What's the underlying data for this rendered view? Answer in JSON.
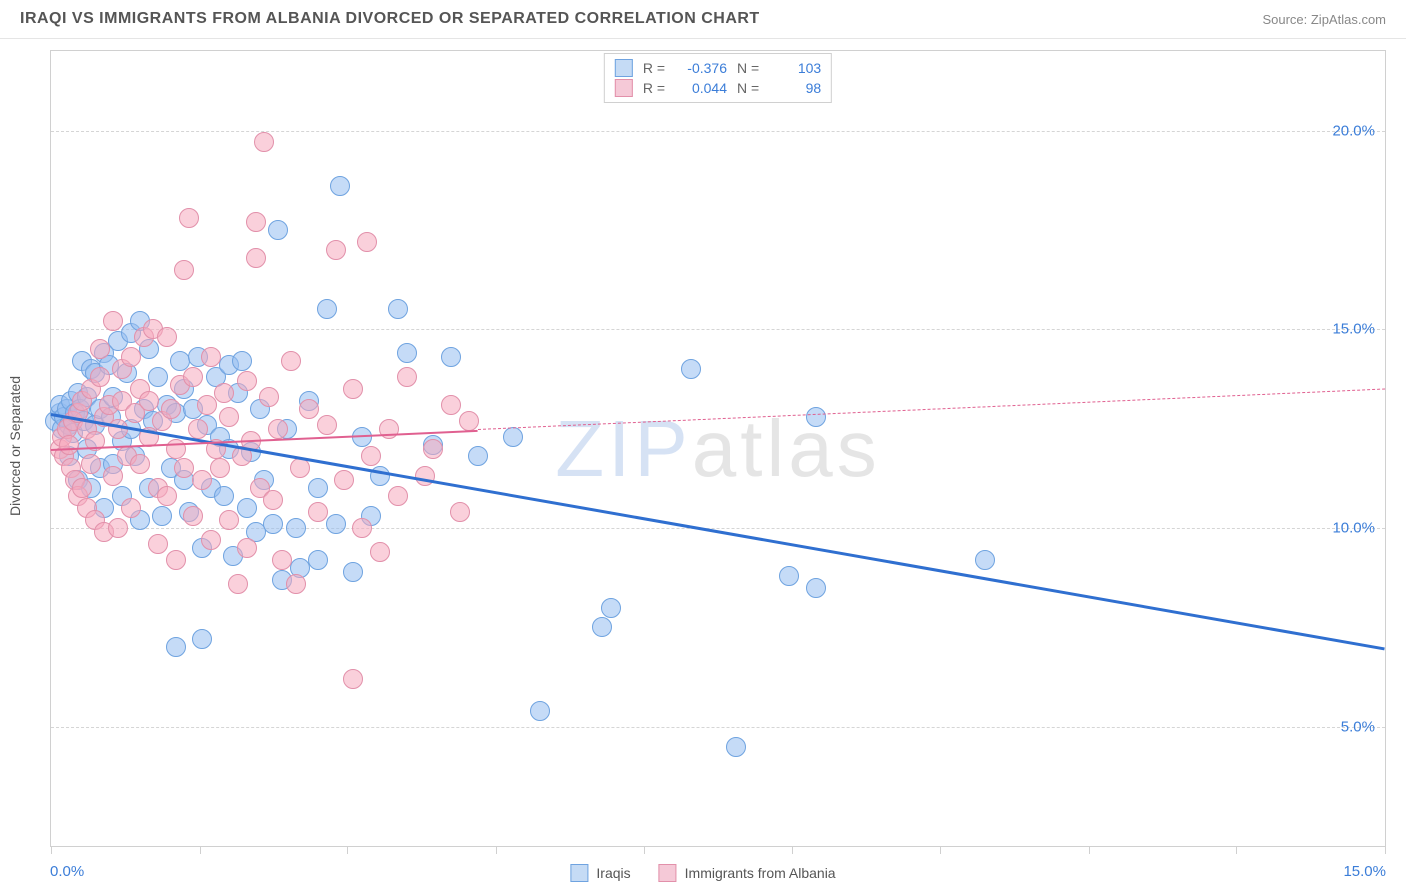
{
  "title": "IRAQI VS IMMIGRANTS FROM ALBANIA DIVORCED OR SEPARATED CORRELATION CHART",
  "source": "Source: ZipAtlas.com",
  "y_axis_title": "Divorced or Separated",
  "watermark_a": "ZIP",
  "watermark_b": "atlas",
  "chart": {
    "type": "scatter",
    "xlim": [
      0,
      15
    ],
    "ylim": [
      2,
      22
    ],
    "y_ticks": [
      5,
      10,
      15,
      20
    ],
    "y_tick_labels": [
      "5.0%",
      "10.0%",
      "15.0%",
      "20.0%"
    ],
    "x_minor_ticks": [
      0,
      1.67,
      3.33,
      5,
      6.67,
      8.33,
      10,
      11.67,
      13.33,
      15
    ],
    "x_label_min": "0.0%",
    "x_label_max": "15.0%",
    "background_color": "#ffffff",
    "grid_color": "#d5d5d5",
    "border_color": "#d0d0d0",
    "marker_radius": 10,
    "marker_border_width": 1,
    "series": [
      {
        "name": "Iraqis",
        "fill_color": "rgba(150,190,240,0.55)",
        "stroke_color": "#6fa3e0",
        "R": "-0.376",
        "N": "103",
        "trend": {
          "x1": 0,
          "y1": 12.9,
          "x2": 15,
          "y2": 7.0,
          "color": "#2f6fd0",
          "width": 2.5,
          "solid_until_x": 15
        },
        "points": [
          [
            0.05,
            12.7
          ],
          [
            0.1,
            12.9
          ],
          [
            0.1,
            13.1
          ],
          [
            0.12,
            12.5
          ],
          [
            0.15,
            12.8
          ],
          [
            0.18,
            13.0
          ],
          [
            0.2,
            12.6
          ],
          [
            0.2,
            11.8
          ],
          [
            0.22,
            13.2
          ],
          [
            0.25,
            12.4
          ],
          [
            0.27,
            12.9
          ],
          [
            0.3,
            13.4
          ],
          [
            0.3,
            11.2
          ],
          [
            0.33,
            13.0
          ],
          [
            0.35,
            14.2
          ],
          [
            0.37,
            12.7
          ],
          [
            0.4,
            13.3
          ],
          [
            0.4,
            12.0
          ],
          [
            0.45,
            14.0
          ],
          [
            0.45,
            11.0
          ],
          [
            0.5,
            13.9
          ],
          [
            0.5,
            12.6
          ],
          [
            0.55,
            13.0
          ],
          [
            0.55,
            11.5
          ],
          [
            0.6,
            14.4
          ],
          [
            0.6,
            10.5
          ],
          [
            0.65,
            14.1
          ],
          [
            0.68,
            12.8
          ],
          [
            0.7,
            13.3
          ],
          [
            0.7,
            11.6
          ],
          [
            0.75,
            14.7
          ],
          [
            0.8,
            12.2
          ],
          [
            0.8,
            10.8
          ],
          [
            0.85,
            13.9
          ],
          [
            0.9,
            14.9
          ],
          [
            0.9,
            12.5
          ],
          [
            0.95,
            11.8
          ],
          [
            1.0,
            15.2
          ],
          [
            1.0,
            10.2
          ],
          [
            1.05,
            13.0
          ],
          [
            1.1,
            14.5
          ],
          [
            1.1,
            11.0
          ],
          [
            1.15,
            12.7
          ],
          [
            1.2,
            13.8
          ],
          [
            1.25,
            10.3
          ],
          [
            1.3,
            13.1
          ],
          [
            1.35,
            11.5
          ],
          [
            1.4,
            12.9
          ],
          [
            1.45,
            14.2
          ],
          [
            1.5,
            13.5
          ],
          [
            1.5,
            11.2
          ],
          [
            1.55,
            10.4
          ],
          [
            1.6,
            13.0
          ],
          [
            1.65,
            14.3
          ],
          [
            1.7,
            9.5
          ],
          [
            1.75,
            12.6
          ],
          [
            1.8,
            11.0
          ],
          [
            1.85,
            13.8
          ],
          [
            1.9,
            12.3
          ],
          [
            1.95,
            10.8
          ],
          [
            2.0,
            14.1
          ],
          [
            2.0,
            12.0
          ],
          [
            2.05,
            9.3
          ],
          [
            2.1,
            13.4
          ],
          [
            2.15,
            14.2
          ],
          [
            2.2,
            10.5
          ],
          [
            2.25,
            11.9
          ],
          [
            2.3,
            9.9
          ],
          [
            2.35,
            13.0
          ],
          [
            2.4,
            11.2
          ],
          [
            2.5,
            10.1
          ],
          [
            2.55,
            17.5
          ],
          [
            2.6,
            8.7
          ],
          [
            2.65,
            12.5
          ],
          [
            2.75,
            10.0
          ],
          [
            2.8,
            9.0
          ],
          [
            2.9,
            13.2
          ],
          [
            3.0,
            9.2
          ],
          [
            3.0,
            11.0
          ],
          [
            3.1,
            15.5
          ],
          [
            3.2,
            10.1
          ],
          [
            3.25,
            18.6
          ],
          [
            3.4,
            8.9
          ],
          [
            3.5,
            12.3
          ],
          [
            3.6,
            10.3
          ],
          [
            3.7,
            11.3
          ],
          [
            3.9,
            15.5
          ],
          [
            4.0,
            14.4
          ],
          [
            4.3,
            12.1
          ],
          [
            4.5,
            14.3
          ],
          [
            4.8,
            11.8
          ],
          [
            5.2,
            12.3
          ],
          [
            5.5,
            5.4
          ],
          [
            6.2,
            7.5
          ],
          [
            6.3,
            8.0
          ],
          [
            7.2,
            14.0
          ],
          [
            7.7,
            4.5
          ],
          [
            8.3,
            8.8
          ],
          [
            8.6,
            8.5
          ],
          [
            8.6,
            12.8
          ],
          [
            10.5,
            9.2
          ],
          [
            1.4,
            7.0
          ],
          [
            1.7,
            7.2
          ]
        ]
      },
      {
        "name": "Immigants_from_Albania",
        "display_name": "Immigrants from Albania",
        "fill_color": "rgba(245,170,190,0.55)",
        "stroke_color": "#e290aa",
        "R": "0.044",
        "N": "98",
        "trend": {
          "x1": 0,
          "y1": 12.0,
          "x2": 15,
          "y2": 13.5,
          "color": "#e06090",
          "width": 2,
          "solid_until_x": 4.8
        },
        "points": [
          [
            0.1,
            12.0
          ],
          [
            0.12,
            12.3
          ],
          [
            0.15,
            11.8
          ],
          [
            0.18,
            12.5
          ],
          [
            0.2,
            12.1
          ],
          [
            0.22,
            11.5
          ],
          [
            0.25,
            12.7
          ],
          [
            0.27,
            11.2
          ],
          [
            0.3,
            12.9
          ],
          [
            0.3,
            10.8
          ],
          [
            0.35,
            13.2
          ],
          [
            0.35,
            11.0
          ],
          [
            0.4,
            12.5
          ],
          [
            0.4,
            10.5
          ],
          [
            0.45,
            13.5
          ],
          [
            0.45,
            11.6
          ],
          [
            0.5,
            12.2
          ],
          [
            0.5,
            10.2
          ],
          [
            0.55,
            13.8
          ],
          [
            0.55,
            14.5
          ],
          [
            0.6,
            12.8
          ],
          [
            0.6,
            9.9
          ],
          [
            0.65,
            13.1
          ],
          [
            0.7,
            15.2
          ],
          [
            0.7,
            11.3
          ],
          [
            0.75,
            12.5
          ],
          [
            0.75,
            10.0
          ],
          [
            0.8,
            14.0
          ],
          [
            0.8,
            13.2
          ],
          [
            0.85,
            11.8
          ],
          [
            0.9,
            14.3
          ],
          [
            0.9,
            10.5
          ],
          [
            0.95,
            12.9
          ],
          [
            1.0,
            13.5
          ],
          [
            1.0,
            11.6
          ],
          [
            1.05,
            14.8
          ],
          [
            1.1,
            12.3
          ],
          [
            1.1,
            13.2
          ],
          [
            1.15,
            15.0
          ],
          [
            1.2,
            11.0
          ],
          [
            1.2,
            9.6
          ],
          [
            1.25,
            12.7
          ],
          [
            1.3,
            14.8
          ],
          [
            1.3,
            10.8
          ],
          [
            1.35,
            13.0
          ],
          [
            1.4,
            12.0
          ],
          [
            1.4,
            9.2
          ],
          [
            1.45,
            13.6
          ],
          [
            1.5,
            11.5
          ],
          [
            1.5,
            16.5
          ],
          [
            1.55,
            17.8
          ],
          [
            1.6,
            13.8
          ],
          [
            1.6,
            10.3
          ],
          [
            1.65,
            12.5
          ],
          [
            1.7,
            11.2
          ],
          [
            1.75,
            13.1
          ],
          [
            1.8,
            14.3
          ],
          [
            1.8,
            9.7
          ],
          [
            1.85,
            12.0
          ],
          [
            1.9,
            11.5
          ],
          [
            1.95,
            13.4
          ],
          [
            2.0,
            10.2
          ],
          [
            2.0,
            12.8
          ],
          [
            2.1,
            8.6
          ],
          [
            2.15,
            11.8
          ],
          [
            2.2,
            13.7
          ],
          [
            2.2,
            9.5
          ],
          [
            2.25,
            12.2
          ],
          [
            2.3,
            16.8
          ],
          [
            2.3,
            17.7
          ],
          [
            2.35,
            11.0
          ],
          [
            2.4,
            19.7
          ],
          [
            2.45,
            13.3
          ],
          [
            2.5,
            10.7
          ],
          [
            2.55,
            12.5
          ],
          [
            2.6,
            9.2
          ],
          [
            2.7,
            14.2
          ],
          [
            2.75,
            8.6
          ],
          [
            2.8,
            11.5
          ],
          [
            2.9,
            13.0
          ],
          [
            3.0,
            10.4
          ],
          [
            3.1,
            12.6
          ],
          [
            3.2,
            17.0
          ],
          [
            3.3,
            11.2
          ],
          [
            3.4,
            13.5
          ],
          [
            3.4,
            6.2
          ],
          [
            3.5,
            10.0
          ],
          [
            3.55,
            17.2
          ],
          [
            3.6,
            11.8
          ],
          [
            3.7,
            9.4
          ],
          [
            3.8,
            12.5
          ],
          [
            3.9,
            10.8
          ],
          [
            4.0,
            13.8
          ],
          [
            4.2,
            11.3
          ],
          [
            4.3,
            12.0
          ],
          [
            4.5,
            13.1
          ],
          [
            4.7,
            12.7
          ],
          [
            4.6,
            10.4
          ]
        ]
      }
    ]
  },
  "legend": {
    "stats_labels": {
      "R": "R =",
      "N": "N ="
    },
    "swatch_blue_fill": "#c5dbf5",
    "swatch_blue_border": "#6fa3e0",
    "swatch_pink_fill": "#f5c9d7",
    "swatch_pink_border": "#e290aa",
    "bottom_items": [
      "Iraqis",
      "Immigrants from Albania"
    ]
  }
}
